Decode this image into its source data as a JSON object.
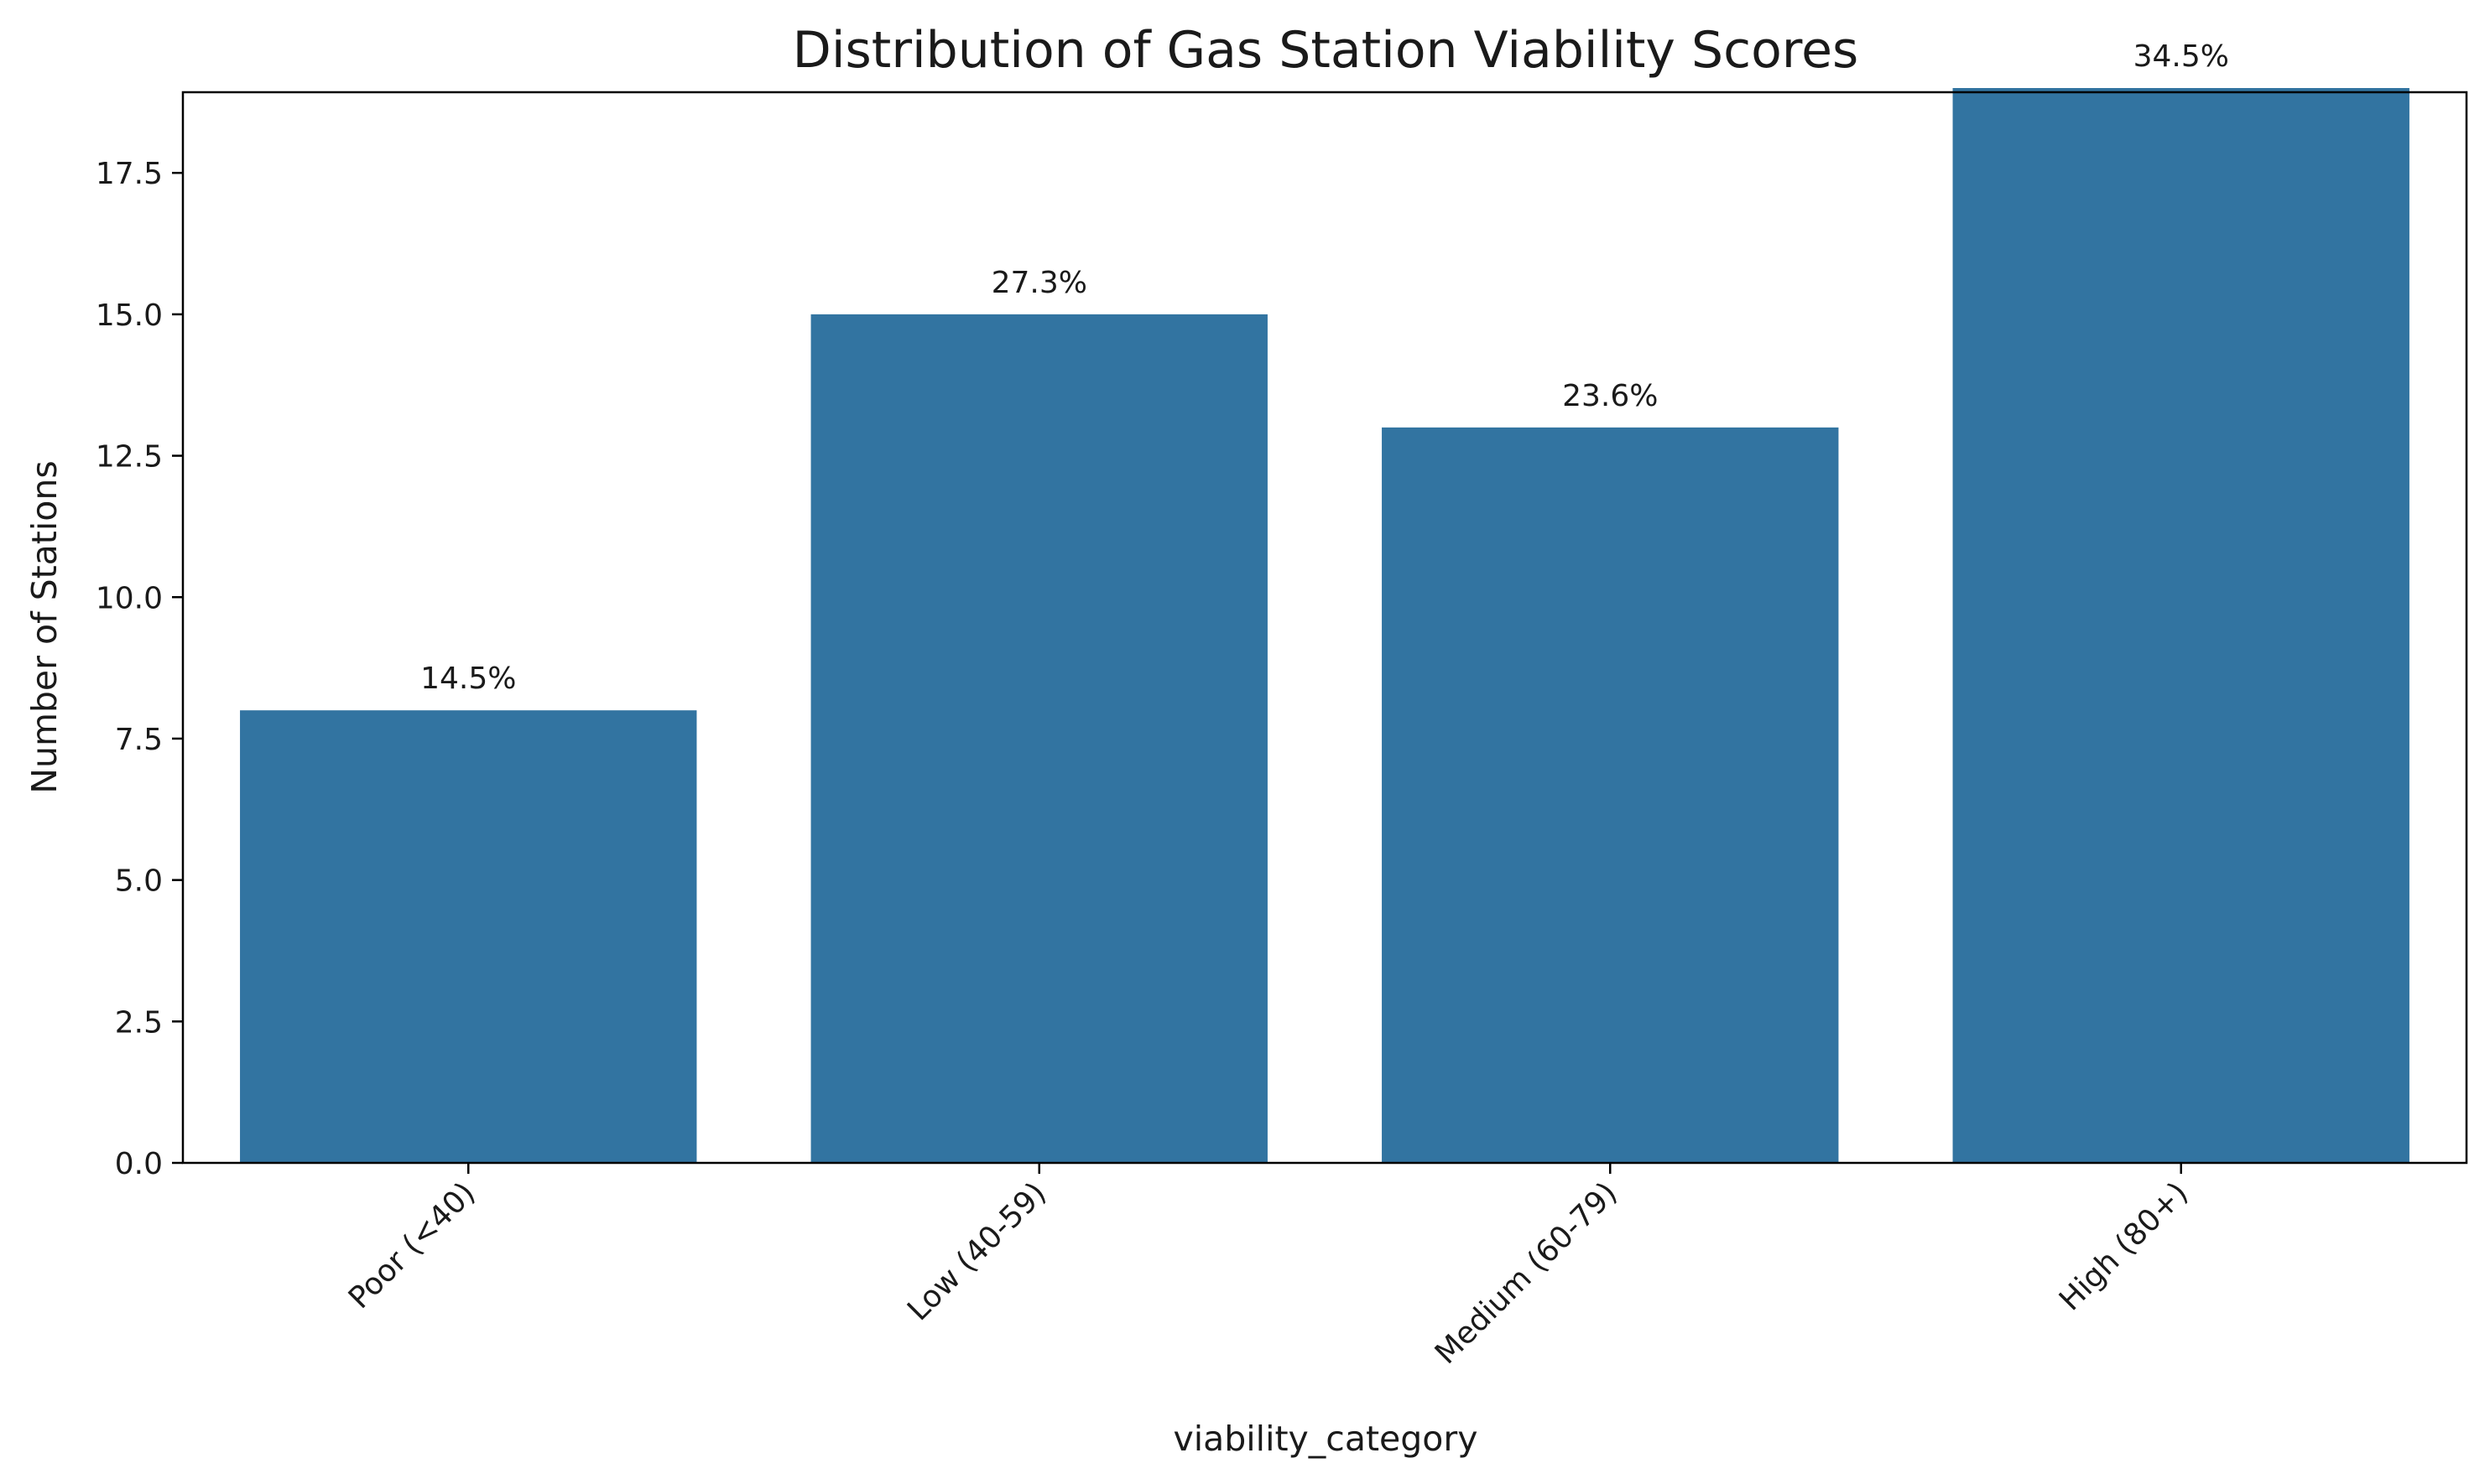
{
  "chart_data": {
    "type": "bar",
    "title": "Distribution of Gas Station Viability Scores",
    "xlabel": "viability_category",
    "ylabel": "Number of Stations",
    "categories": [
      "Poor (<40)",
      "Low (40-59)",
      "Medium (60-79)",
      "High (80+)"
    ],
    "values": [
      8,
      15,
      13,
      19
    ],
    "data_labels": [
      "14.5%",
      "27.3%",
      "23.6%",
      "34.5%"
    ],
    "ylim": [
      0,
      20
    ],
    "yticks": [
      0,
      2.5,
      5,
      7.5,
      10,
      12.5,
      15,
      17.5
    ],
    "ytick_labels": [
      "0.0",
      "2.5",
      "5.0",
      "7.5",
      "10.0",
      "12.5",
      "15.0",
      "17.5"
    ],
    "grid": false,
    "legend": "none",
    "bar_color": "#3274a1"
  }
}
